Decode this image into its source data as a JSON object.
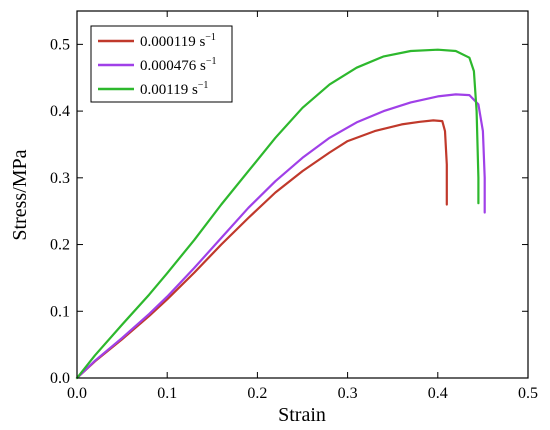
{
  "chart_data": {
    "type": "line",
    "xlabel": "Strain",
    "ylabel": "Stress/MPa",
    "xlim": [
      0.0,
      0.5
    ],
    "ylim": [
      0.0,
      0.55
    ],
    "xticks": [
      "0.0",
      "0.1",
      "0.2",
      "0.3",
      "0.4",
      "0.5"
    ],
    "yticks": [
      "0.0",
      "0.1",
      "0.2",
      "0.3",
      "0.4",
      "0.5"
    ],
    "xtick_values": [
      0.0,
      0.1,
      0.2,
      0.3,
      0.4,
      0.5
    ],
    "ytick_values": [
      0.0,
      0.1,
      0.2,
      0.3,
      0.4,
      0.5
    ],
    "grid": false,
    "legend_position": "top-left",
    "series": [
      {
        "name": "0.000119",
        "unit_base": "s",
        "unit_exp": "−1",
        "color": "#c0392b",
        "x": [
          0.0,
          0.02,
          0.05,
          0.08,
          0.1,
          0.13,
          0.16,
          0.19,
          0.22,
          0.25,
          0.28,
          0.3,
          0.33,
          0.36,
          0.38,
          0.395,
          0.405,
          0.408,
          0.41,
          0.41
        ],
        "y": [
          0.0,
          0.025,
          0.058,
          0.093,
          0.118,
          0.158,
          0.2,
          0.24,
          0.278,
          0.31,
          0.338,
          0.355,
          0.37,
          0.38,
          0.384,
          0.386,
          0.385,
          0.37,
          0.32,
          0.26
        ]
      },
      {
        "name": "0.000476",
        "unit_base": "s",
        "unit_exp": "−1",
        "color": "#a040e8",
        "x": [
          0.0,
          0.02,
          0.05,
          0.08,
          0.1,
          0.13,
          0.16,
          0.19,
          0.22,
          0.25,
          0.28,
          0.31,
          0.34,
          0.37,
          0.4,
          0.42,
          0.435,
          0.445,
          0.45,
          0.452,
          0.452
        ],
        "y": [
          0.0,
          0.026,
          0.06,
          0.096,
          0.122,
          0.165,
          0.21,
          0.255,
          0.295,
          0.33,
          0.36,
          0.383,
          0.4,
          0.413,
          0.422,
          0.425,
          0.424,
          0.41,
          0.37,
          0.3,
          0.248
        ]
      },
      {
        "name": "0.00119",
        "unit_base": "s",
        "unit_exp": "−1",
        "color": "#2db82d",
        "x": [
          0.0,
          0.02,
          0.05,
          0.08,
          0.1,
          0.13,
          0.16,
          0.19,
          0.22,
          0.25,
          0.28,
          0.31,
          0.34,
          0.37,
          0.4,
          0.42,
          0.435,
          0.44,
          0.443,
          0.445,
          0.445
        ],
        "y": [
          0.0,
          0.034,
          0.08,
          0.125,
          0.157,
          0.207,
          0.26,
          0.31,
          0.36,
          0.405,
          0.44,
          0.465,
          0.482,
          0.49,
          0.492,
          0.49,
          0.48,
          0.46,
          0.4,
          0.3,
          0.262
        ]
      }
    ]
  }
}
